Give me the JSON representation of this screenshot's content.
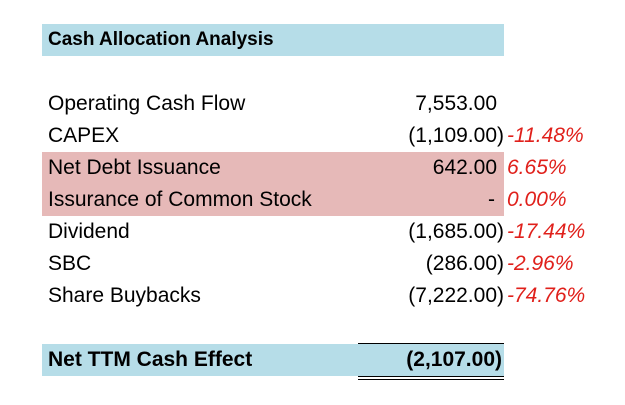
{
  "title": "Cash Allocation Analysis",
  "rows": [
    {
      "label": "Operating Cash Flow",
      "value": "7,553.00",
      "pct": ""
    },
    {
      "label": "CAPEX",
      "value": "(1,109.00)",
      "pct": "-11.48%"
    },
    {
      "label": "Net Debt Issuance",
      "value": "642.00",
      "pct": "6.65%"
    },
    {
      "label": "Issurance of Common Stock",
      "value": "-",
      "pct": "0.00%"
    },
    {
      "label": "Dividend",
      "value": "(1,685.00)",
      "pct": "-17.44%"
    },
    {
      "label": "SBC",
      "value": "(286.00)",
      "pct": "-2.96%"
    },
    {
      "label": "Share Buybacks",
      "value": "(7,222.00)",
      "pct": "-74.76%"
    }
  ],
  "total": {
    "label": "Net TTM Cash Effect",
    "value": "(2,107.00)"
  },
  "colors": {
    "header_fill": "#b6dde8",
    "highlight_fill": "#e6b9b8",
    "negative_pct": "#e0201b"
  }
}
